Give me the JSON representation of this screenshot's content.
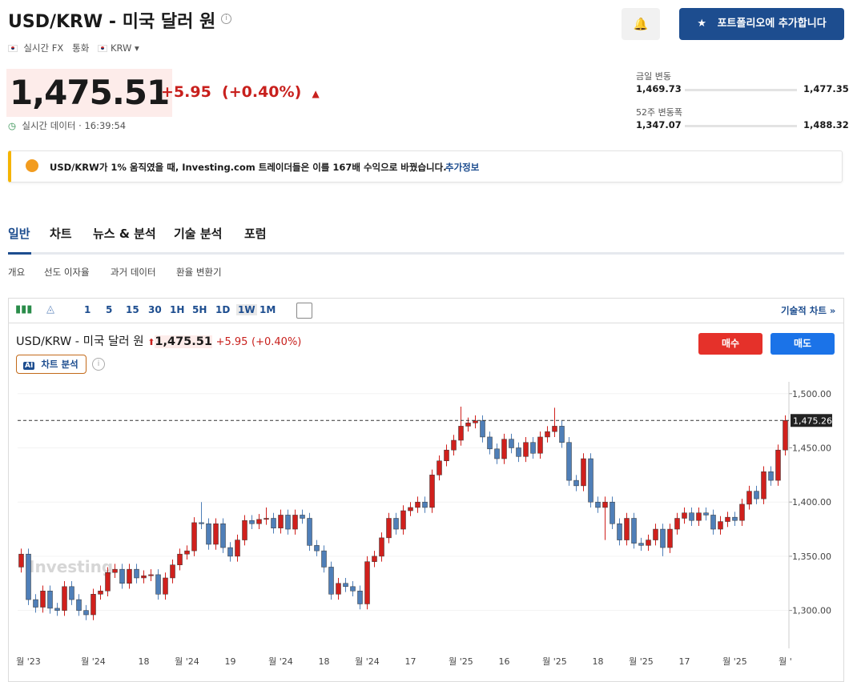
{
  "header": {
    "title": "USD/KRW - 미국 달러 원",
    "meta": [
      "실시간 FX",
      "통화",
      "KRW"
    ],
    "portfolio_button": "포트폴리오에 추가합니다"
  },
  "price": {
    "value": "1,475.51",
    "change": "+5.95",
    "change_pct": "(+0.40%)",
    "time": "실시간 데이터 · 16:39:54"
  },
  "ranges": [
    {
      "label": "금일 변동",
      "low": "1,469.73",
      "high": "1,477.35"
    },
    {
      "label": "52주 변동폭",
      "low": "1,347.07",
      "high": "1,488.32"
    }
  ],
  "banner": {
    "text": "USD/KRW가 1% 움직였을 때, Investing.com 트레이더들은 이를 167배 수익으로 바꿨습니다.",
    "link": "추가정보"
  },
  "tabs": [
    "일반",
    "차트",
    "뉴스 & 분석",
    "기술 분석",
    "포럼"
  ],
  "subtabs": [
    "개요",
    "선도 이자율",
    "과거 데이터",
    "환율 변환기"
  ],
  "toolbar": {
    "intervals": [
      "1",
      "5",
      "15",
      "30",
      "1H",
      "5H",
      "1D",
      "1W",
      "1M"
    ],
    "technical_link": "기술적 차트 »"
  },
  "chart_header": {
    "title": "USD/KRW - 미국 달러 원",
    "price": "1,475.51",
    "change": "+5.95",
    "change_pct": "(+0.40%)",
    "buy": "매수",
    "sell": "매도",
    "ai_badge": "AI",
    "ai_button": "차트 분석",
    "watermark": "Investing"
  },
  "chart_data": {
    "type": "candlestick",
    "up_color": "#d0201c",
    "down_color": "#4f7fb8",
    "categories": [
      null,
      "월 '23",
      null,
      null,
      null,
      null,
      null,
      null,
      null,
      null,
      "월 '24",
      null,
      null,
      null,
      null,
      null,
      null,
      "18",
      null,
      null,
      null,
      null,
      null,
      "월 '24",
      null,
      null,
      null,
      null,
      null,
      "19",
      null,
      null,
      null,
      null,
      null,
      null,
      "월 '24",
      null,
      null,
      null,
      null,
      null,
      "18",
      null,
      null,
      null,
      null,
      null,
      "월 '24",
      null,
      null,
      null,
      null,
      null,
      "17",
      null,
      null,
      null,
      null,
      null,
      null,
      "월 '25",
      null,
      null,
      null,
      null,
      null,
      "16",
      null,
      null,
      null,
      null,
      null,
      null,
      "월 '25",
      null,
      null,
      null,
      null,
      null,
      "18",
      null,
      null,
      null,
      null,
      null,
      "월 '25",
      null,
      null,
      null,
      null,
      null,
      "17",
      null,
      null,
      null,
      null,
      null,
      null,
      "월 '25",
      null,
      null,
      null,
      null,
      null,
      null,
      "월 '"
    ],
    "open": [
      1340,
      1352,
      1310,
      1303,
      1318,
      1302,
      1300,
      1322,
      1310,
      1300,
      1296,
      1315,
      1318,
      1335,
      1338,
      1325,
      1338,
      1330,
      1332,
      1333,
      1315,
      1330,
      1342,
      1352,
      1355,
      1381,
      1380,
      1361,
      1380,
      1358,
      1350,
      1365,
      1383,
      1380,
      1384,
      1385,
      1376,
      1388,
      1375,
      1388,
      1385,
      1360,
      1355,
      1340,
      1315,
      1325,
      1322,
      1318,
      1306,
      1345,
      1350,
      1367,
      1385,
      1375,
      1392,
      1395,
      1400,
      1395,
      1425,
      1438,
      1448,
      1457,
      1470,
      1473,
      1475,
      1460,
      1449,
      1440,
      1458,
      1450,
      1442,
      1455,
      1445,
      1460,
      1465,
      1470,
      1455,
      1420,
      1415,
      1440,
      1400,
      1395,
      1400,
      1380,
      1365,
      1385,
      1362,
      1360,
      1365,
      1375,
      1358,
      1375,
      1385,
      1390,
      1383,
      1390,
      1388,
      1375,
      1382,
      1386,
      1383,
      1398,
      1410,
      1403,
      1428,
      1420,
      1448
    ],
    "high": [
      1357,
      1357,
      1315,
      1323,
      1323,
      1307,
      1327,
      1327,
      1315,
      1305,
      1320,
      1323,
      1340,
      1343,
      1343,
      1343,
      1343,
      1337,
      1338,
      1338,
      1335,
      1347,
      1357,
      1360,
      1386,
      1400,
      1385,
      1385,
      1385,
      1363,
      1370,
      1388,
      1388,
      1389,
      1395,
      1390,
      1393,
      1393,
      1393,
      1393,
      1390,
      1365,
      1360,
      1345,
      1330,
      1330,
      1327,
      1323,
      1350,
      1355,
      1372,
      1390,
      1390,
      1397,
      1400,
      1405,
      1405,
      1430,
      1443,
      1453,
      1462,
      1488,
      1478,
      1480,
      1480,
      1465,
      1454,
      1463,
      1463,
      1455,
      1460,
      1460,
      1465,
      1470,
      1487,
      1475,
      1460,
      1425,
      1445,
      1445,
      1405,
      1405,
      1405,
      1385,
      1390,
      1390,
      1367,
      1370,
      1380,
      1380,
      1380,
      1390,
      1395,
      1395,
      1395,
      1395,
      1393,
      1387,
      1391,
      1391,
      1403,
      1415,
      1415,
      1433,
      1433,
      1453,
      1480
    ],
    "low": [
      1335,
      1305,
      1298,
      1298,
      1297,
      1295,
      1295,
      1305,
      1295,
      1291,
      1291,
      1310,
      1313,
      1330,
      1320,
      1320,
      1325,
      1325,
      1327,
      1310,
      1310,
      1325,
      1337,
      1347,
      1350,
      1375,
      1356,
      1356,
      1353,
      1345,
      1345,
      1360,
      1375,
      1375,
      1379,
      1371,
      1371,
      1370,
      1370,
      1380,
      1355,
      1350,
      1335,
      1310,
      1310,
      1317,
      1313,
      1301,
      1301,
      1340,
      1345,
      1362,
      1370,
      1370,
      1387,
      1390,
      1390,
      1390,
      1420,
      1433,
      1443,
      1452,
      1465,
      1468,
      1455,
      1444,
      1435,
      1435,
      1445,
      1437,
      1437,
      1440,
      1440,
      1455,
      1460,
      1450,
      1415,
      1410,
      1410,
      1395,
      1390,
      1365,
      1375,
      1360,
      1360,
      1357,
      1355,
      1355,
      1360,
      1350,
      1353,
      1370,
      1380,
      1378,
      1378,
      1383,
      1370,
      1370,
      1377,
      1378,
      1378,
      1393,
      1398,
      1398,
      1415,
      1415,
      1443
    ],
    "close": [
      1352,
      1310,
      1303,
      1318,
      1302,
      1300,
      1322,
      1310,
      1300,
      1296,
      1315,
      1318,
      1335,
      1338,
      1325,
      1338,
      1330,
      1332,
      1333,
      1315,
      1330,
      1342,
      1352,
      1355,
      1381,
      1380,
      1361,
      1380,
      1358,
      1350,
      1365,
      1383,
      1380,
      1384,
      1385,
      1376,
      1388,
      1375,
      1388,
      1385,
      1360,
      1355,
      1340,
      1315,
      1325,
      1322,
      1318,
      1306,
      1345,
      1350,
      1367,
      1385,
      1375,
      1392,
      1395,
      1400,
      1395,
      1425,
      1438,
      1448,
      1457,
      1470,
      1473,
      1475,
      1460,
      1449,
      1440,
      1458,
      1450,
      1442,
      1455,
      1445,
      1460,
      1465,
      1470,
      1455,
      1420,
      1415,
      1440,
      1400,
      1395,
      1400,
      1380,
      1365,
      1385,
      1362,
      1360,
      1365,
      1375,
      1358,
      1375,
      1385,
      1390,
      1383,
      1390,
      1388,
      1375,
      1382,
      1386,
      1383,
      1398,
      1410,
      1403,
      1428,
      1420,
      1448,
      1475.26
    ],
    "ylim": [
      1265,
      1505
    ],
    "yticks": [
      {
        "value": 1300,
        "label": "1,300.00"
      },
      {
        "value": 1350,
        "label": "1,350.00"
      },
      {
        "value": 1400,
        "label": "1,400.00"
      },
      {
        "value": 1450,
        "label": "1,450.00"
      },
      {
        "value": 1500,
        "label": "1,500.00"
      }
    ],
    "last_price": {
      "value": 1475.26,
      "label": "1,475.26"
    }
  }
}
